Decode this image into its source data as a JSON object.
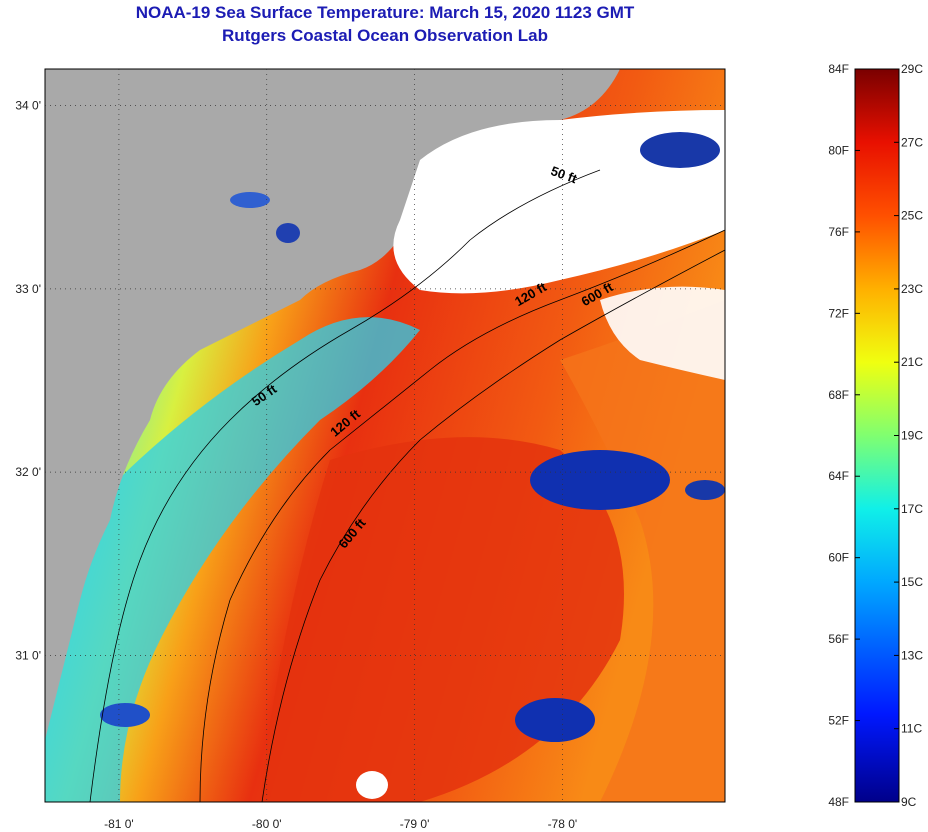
{
  "title": {
    "line1": "NOAA-19 Sea Surface Temperature:  March 15, 2020 1123 GMT",
    "line2": "Rutgers Coastal Ocean Observation Lab"
  },
  "map": {
    "lat_labels": [
      "34 0'",
      "33 0'",
      "32 0'",
      "31 0'"
    ],
    "lon_labels": [
      "-81 0'",
      "-80 0'",
      "-79 0'",
      "-78 0'"
    ],
    "lat_ticks": [
      34,
      33,
      32,
      31
    ],
    "lon_ticks": [
      -81,
      -80,
      -79,
      -78
    ],
    "lon_range": [
      -81.5,
      -76.9
    ],
    "lat_range": [
      30.2,
      34.2
    ],
    "contour_labels": [
      {
        "text": "50 ft",
        "lon": -78.0,
        "lat": 33.6,
        "angle": 20
      },
      {
        "text": "120 ft",
        "lon": -78.2,
        "lat": 32.95,
        "angle": -30
      },
      {
        "text": "600 ft",
        "lon": -77.75,
        "lat": 32.95,
        "angle": -30
      },
      {
        "text": "50 ft",
        "lon": -80.0,
        "lat": 32.4,
        "angle": -35
      },
      {
        "text": "120 ft",
        "lon": -79.45,
        "lat": 32.25,
        "angle": -40
      },
      {
        "text": "600 ft",
        "lon": -79.4,
        "lat": 31.65,
        "angle": -50
      }
    ],
    "colors": {
      "land": "#a9a9a9",
      "cloud": "#ffffff",
      "warm": "#e8300c",
      "mid": "#fa8a12",
      "cool": "#22c8e6",
      "cold": "#1030b0"
    }
  },
  "colorbar": {
    "f_labels": [
      "84F",
      "80F",
      "76F",
      "72F",
      "68F",
      "64F",
      "60F",
      "56F",
      "52F",
      "48F"
    ],
    "c_labels": [
      "29C",
      "27C",
      "25C",
      "23C",
      "21C",
      "19C",
      "17C",
      "15C",
      "13C",
      "11C",
      "9C"
    ],
    "f_min": 48,
    "f_max": 84,
    "c_min": 9,
    "c_max": 29
  }
}
